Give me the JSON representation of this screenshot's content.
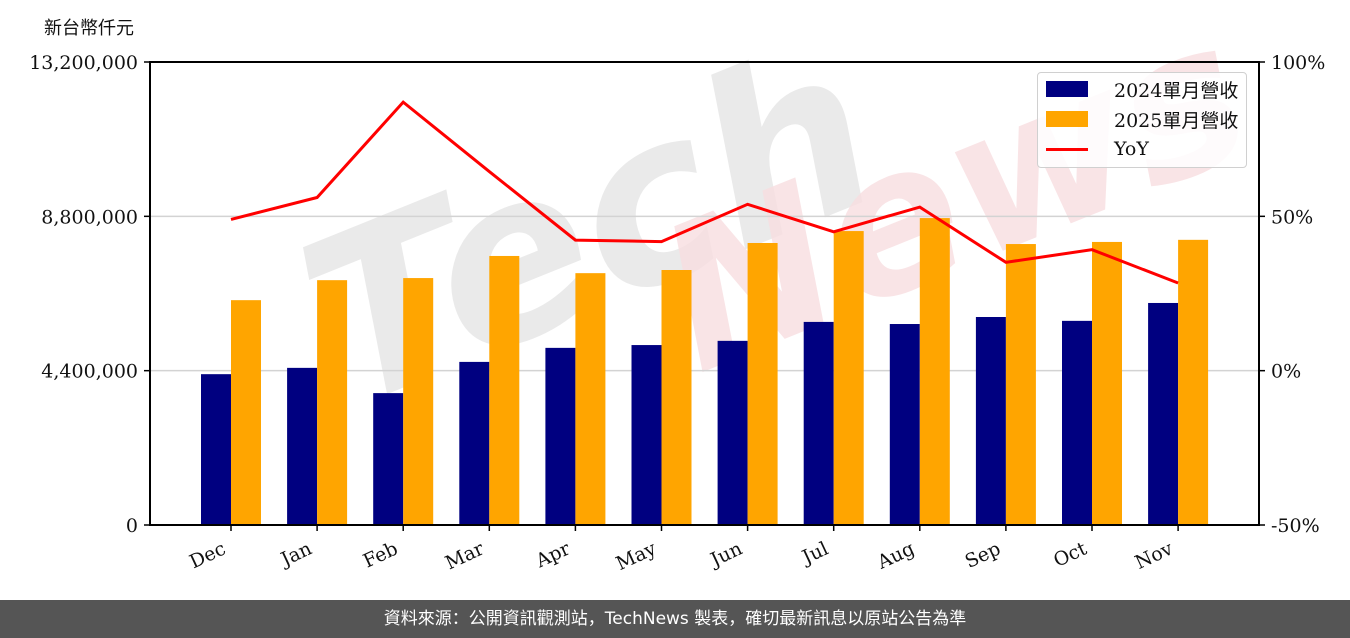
{
  "header": {
    "unit_label": "新台幣仟元"
  },
  "footer": {
    "source_text": "資料來源：公開資訊觀測站，TechNews 製表，確切最新訊息以原站公告為準"
  },
  "watermark": {
    "text": "TechNews"
  },
  "legend": {
    "items": [
      {
        "label": "2024單月營收",
        "color": "#000080",
        "type": "bar"
      },
      {
        "label": "2025單月營收",
        "color": "#FFA500",
        "type": "bar"
      },
      {
        "label": "YoY",
        "color": "#FF0000",
        "type": "line"
      }
    ]
  },
  "axes": {
    "left_ticks": [
      "0",
      "4,400,000",
      "8,800,000",
      "13,200,000"
    ],
    "right_ticks": [
      "-50%",
      "0%",
      "50%",
      "100%"
    ]
  },
  "chart_data": {
    "type": "bar",
    "title": "",
    "ylabel": "新台幣仟元",
    "xlabel": "",
    "categories": [
      "Dec",
      "Jan",
      "Feb",
      "Mar",
      "Apr",
      "May",
      "Jun",
      "Jul",
      "Aug",
      "Sep",
      "Oct",
      "Nov"
    ],
    "series": [
      {
        "name": "2024單月營收",
        "type": "bar",
        "axis": "left",
        "color": "#000080",
        "values": [
          4300000,
          4480000,
          3760000,
          4650000,
          5050000,
          5130000,
          5250000,
          5790000,
          5730000,
          5930000,
          5820000,
          6330000
        ]
      },
      {
        "name": "2025單月營收",
        "type": "bar",
        "axis": "left",
        "color": "#FFA500",
        "values": [
          6410000,
          6980000,
          7040000,
          7670000,
          7180000,
          7270000,
          8040000,
          8380000,
          8750000,
          8010000,
          8070000,
          8130000
        ]
      },
      {
        "name": "YoY",
        "type": "line",
        "axis": "right",
        "color": "#FF0000",
        "unit": "%",
        "values": [
          49.0,
          56.1,
          87.0,
          64.5,
          42.3,
          41.8,
          53.9,
          45.0,
          53.0,
          35.1,
          39.2,
          28.4
        ]
      }
    ],
    "ylim": [
      0,
      13200000
    ],
    "y2lim": [
      -50,
      100
    ],
    "yticks": [
      0,
      4400000,
      8800000,
      13200000
    ],
    "y2ticks": [
      -50,
      0,
      50,
      100
    ],
    "grid": "horizontal",
    "legend_position": "upper right"
  }
}
